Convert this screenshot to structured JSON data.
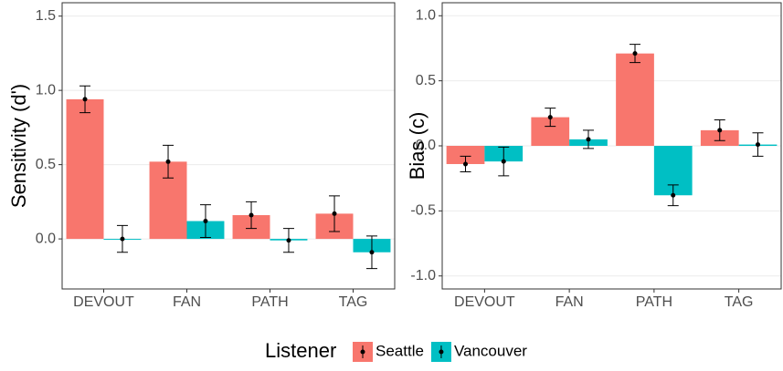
{
  "chart_data": [
    {
      "type": "bar",
      "y_label": "Sensitivity (d')",
      "legend_title": "Listener",
      "categories": [
        "DEVOUT",
        "FAN",
        "PATH",
        "TAG"
      ],
      "series": [
        {
          "name": "Seattle",
          "color": "#F8766D",
          "values": [
            0.94,
            0.52,
            0.16,
            0.17
          ],
          "errors": [
            0.09,
            0.11,
            0.09,
            0.12
          ]
        },
        {
          "name": "Vancouver",
          "color": "#00BFC4",
          "values": [
            0.0,
            0.12,
            -0.01,
            -0.09
          ],
          "errors": [
            0.09,
            0.11,
            0.08,
            0.11
          ]
        }
      ],
      "ylim": [
        -0.337,
        1.59
      ],
      "yticks": [
        {
          "value": 0,
          "label": "0.0"
        },
        {
          "value": 0.5,
          "label": "0.5"
        },
        {
          "value": 1,
          "label": "1.0"
        },
        {
          "value": 1.5,
          "label": "1.5"
        }
      ],
      "grid": true
    },
    {
      "type": "bar",
      "y_label": "Bias (c)",
      "categories": [
        "DEVOUT",
        "FAN",
        "PATH",
        "TAG"
      ],
      "series": [
        {
          "name": "Seattle",
          "color": "#F8766D",
          "values": [
            -0.14,
            0.22,
            0.71,
            0.12
          ],
          "errors": [
            0.06,
            0.07,
            0.07,
            0.08
          ]
        },
        {
          "name": "Vancouver",
          "color": "#00BFC4",
          "values": [
            -0.12,
            0.05,
            -0.38,
            0.01
          ],
          "errors": [
            0.11,
            0.07,
            0.08,
            0.09
          ]
        }
      ],
      "ylim": [
        -1.1,
        1.1
      ],
      "yticks": [
        {
          "value": -1,
          "label": "-1.0"
        },
        {
          "value": -0.5,
          "label": "-0.5"
        },
        {
          "value": 0,
          "label": "0.0"
        },
        {
          "value": 0.5,
          "label": "0.5"
        },
        {
          "value": 1,
          "label": "1.0"
        }
      ],
      "grid": true
    }
  ]
}
